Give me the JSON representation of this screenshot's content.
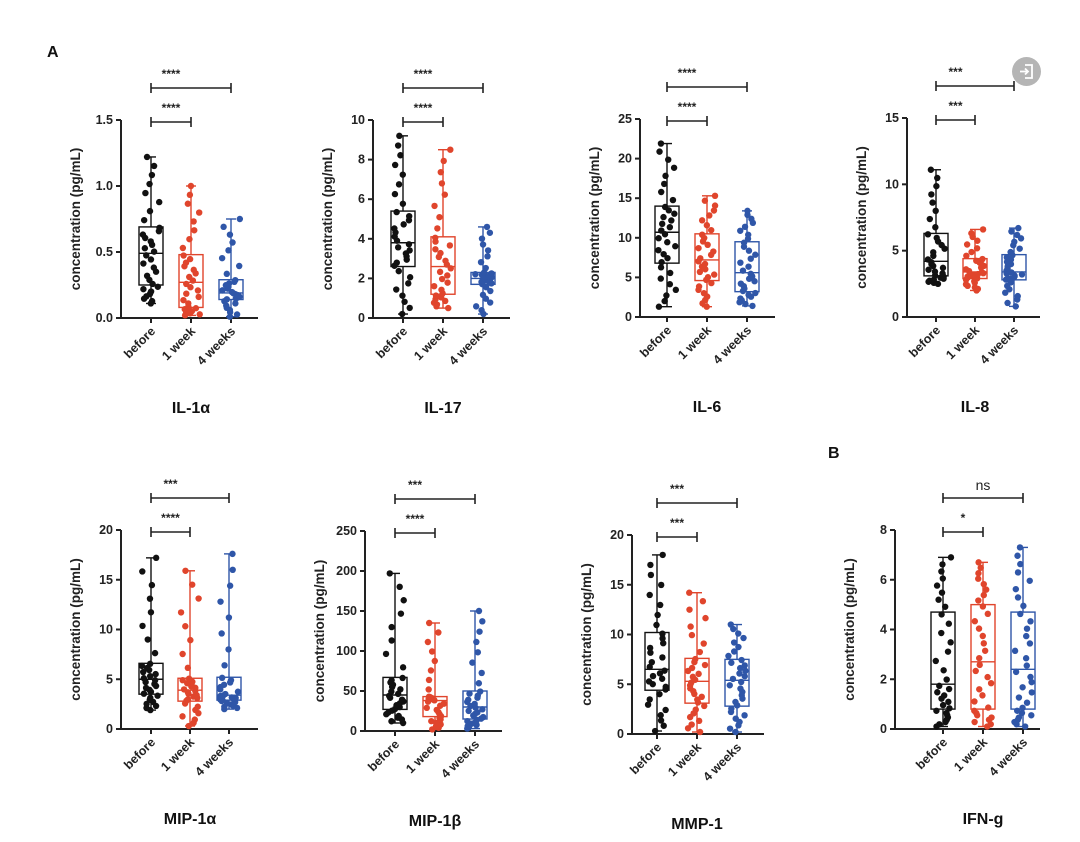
{
  "panel_letters": {
    "a": "A",
    "b": "B"
  },
  "icons": {
    "corner": "sign-in-icon"
  },
  "colors": {
    "before": "#111111",
    "1 week": "#e0452c",
    "4 weeks": "#2f56a8"
  },
  "chart_data": [
    {
      "type": "box",
      "title": "IL-1α",
      "ylabel": "concentration  (pg/mL)",
      "ylim": [
        0,
        1.5
      ],
      "yticks": [
        "0.0",
        "0.5",
        "1.0",
        "1.5"
      ],
      "ytick_values": [
        0,
        0.5,
        1.0,
        1.5
      ],
      "categories": [
        "before",
        "1 week",
        "4 weeks"
      ],
      "boxes": [
        {
          "min": 0.11,
          "q1": 0.25,
          "median": 0.49,
          "q3": 0.69,
          "max": 1.22
        },
        {
          "min": 0.02,
          "q1": 0.08,
          "median": 0.27,
          "q3": 0.48,
          "max": 1.0
        },
        {
          "min": 0.01,
          "q1": 0.14,
          "median": 0.19,
          "q3": 0.29,
          "max": 0.75
        }
      ],
      "significance": [
        {
          "groups": [
            "before",
            "1 week"
          ],
          "label": "****"
        },
        {
          "groups": [
            "before",
            "4 weeks"
          ],
          "label": "****"
        }
      ]
    },
    {
      "type": "box",
      "title": "IL-17",
      "ylabel": "concentration  (pg/mL)",
      "ylim": [
        0,
        10
      ],
      "yticks": [
        "0",
        "2",
        "4",
        "6",
        "8",
        "10"
      ],
      "ytick_values": [
        0,
        2,
        4,
        6,
        8,
        10
      ],
      "categories": [
        "before",
        "1 week",
        "4 weeks"
      ],
      "boxes": [
        {
          "min": 0.2,
          "q1": 2.6,
          "median": 3.8,
          "q3": 5.4,
          "max": 9.2
        },
        {
          "min": 0.5,
          "q1": 1.2,
          "median": 2.6,
          "q3": 4.1,
          "max": 8.5
        },
        {
          "min": 0.2,
          "q1": 1.7,
          "median": 2.0,
          "q3": 2.3,
          "max": 4.6
        }
      ],
      "significance": [
        {
          "groups": [
            "before",
            "1 week"
          ],
          "label": "****"
        },
        {
          "groups": [
            "before",
            "4 weeks"
          ],
          "label": "****"
        }
      ]
    },
    {
      "type": "box",
      "title": "IL-6",
      "ylabel": "concentration  (pg/mL)",
      "ylim": [
        0,
        25
      ],
      "yticks": [
        "0",
        "5",
        "10",
        "15",
        "20",
        "25"
      ],
      "ytick_values": [
        0,
        5,
        10,
        15,
        20,
        25
      ],
      "categories": [
        "before",
        "1 week",
        "4 weeks"
      ],
      "boxes": [
        {
          "min": 1.3,
          "q1": 6.8,
          "median": 10.7,
          "q3": 14.0,
          "max": 21.9
        },
        {
          "min": 1.3,
          "q1": 4.6,
          "median": 7.2,
          "q3": 10.5,
          "max": 15.3
        },
        {
          "min": 1.4,
          "q1": 3.2,
          "median": 5.6,
          "q3": 9.5,
          "max": 13.4
        }
      ],
      "significance": [
        {
          "groups": [
            "before",
            "1 week"
          ],
          "label": "****"
        },
        {
          "groups": [
            "before",
            "4 weeks"
          ],
          "label": "****"
        }
      ]
    },
    {
      "type": "box",
      "title": "IL-8",
      "ylabel": "concentration  (pg/mL)",
      "ylim": [
        0,
        15
      ],
      "yticks": [
        "0",
        "5",
        "10",
        "15"
      ],
      "ytick_values": [
        0,
        5,
        10,
        15
      ],
      "categories": [
        "before",
        "1 week",
        "4 weeks"
      ],
      "boxes": [
        {
          "min": 2.5,
          "q1": 3.1,
          "median": 4.2,
          "q3": 6.3,
          "max": 11.1
        },
        {
          "min": 2.0,
          "q1": 2.9,
          "median": 3.4,
          "q3": 4.4,
          "max": 6.6
        },
        {
          "min": 0.8,
          "q1": 2.8,
          "median": 3.4,
          "q3": 4.7,
          "max": 6.7
        }
      ],
      "significance": [
        {
          "groups": [
            "before",
            "1 week"
          ],
          "label": "***"
        },
        {
          "groups": [
            "before",
            "4 weeks"
          ],
          "label": "***"
        }
      ]
    },
    {
      "type": "box",
      "title": "MIP-1α",
      "ylabel": "concentration  (pg/mL)",
      "ylim": [
        0,
        20
      ],
      "yticks": [
        "0",
        "5",
        "10",
        "15",
        "20"
      ],
      "ytick_values": [
        0,
        5,
        10,
        15,
        20
      ],
      "categories": [
        "before",
        "1 week",
        "4 weeks"
      ],
      "boxes": [
        {
          "min": 1.9,
          "q1": 3.5,
          "median": 5.0,
          "q3": 6.6,
          "max": 17.2
        },
        {
          "min": 0.3,
          "q1": 2.8,
          "median": 3.9,
          "q3": 5.1,
          "max": 15.9
        },
        {
          "min": 2.0,
          "q1": 2.9,
          "median": 3.4,
          "q3": 5.2,
          "max": 17.6
        }
      ],
      "significance": [
        {
          "groups": [
            "before",
            "1 week"
          ],
          "label": "****"
        },
        {
          "groups": [
            "before",
            "4 weeks"
          ],
          "label": "***"
        }
      ]
    },
    {
      "type": "box",
      "title": "MIP-1β",
      "ylabel": "concentration  (pg/mL)",
      "ylim": [
        0,
        250
      ],
      "yticks": [
        "0",
        "50",
        "100",
        "150",
        "200",
        "250"
      ],
      "ytick_values": [
        0,
        50,
        100,
        150,
        200,
        250
      ],
      "categories": [
        "before",
        "1 week",
        "4 weeks"
      ],
      "boxes": [
        {
          "min": 10,
          "q1": 27,
          "median": 45,
          "q3": 67,
          "max": 197
        },
        {
          "min": 2,
          "q1": 18,
          "median": 38,
          "q3": 43,
          "max": 135
        },
        {
          "min": 3,
          "q1": 15,
          "median": 30,
          "q3": 50,
          "max": 150
        }
      ],
      "significance": [
        {
          "groups": [
            "before",
            "1 week"
          ],
          "label": "****"
        },
        {
          "groups": [
            "before",
            "4 weeks"
          ],
          "label": "***"
        }
      ]
    },
    {
      "type": "box",
      "title": "MMP-1",
      "ylabel": "concentration  (pg/mL)",
      "ylim": [
        0,
        20
      ],
      "yticks": [
        "0",
        "5",
        "10",
        "15",
        "20"
      ],
      "ytick_values": [
        0,
        5,
        10,
        15,
        20
      ],
      "categories": [
        "before",
        "1 week",
        "4 weeks"
      ],
      "boxes": [
        {
          "min": 0.3,
          "q1": 4.4,
          "median": 6.5,
          "q3": 10.2,
          "max": 18.0
        },
        {
          "min": 0.2,
          "q1": 3.1,
          "median": 5.3,
          "q3": 7.6,
          "max": 14.2
        },
        {
          "min": 0.2,
          "q1": 2.8,
          "median": 5.4,
          "q3": 7.5,
          "max": 11.0
        }
      ],
      "significance": [
        {
          "groups": [
            "before",
            "1 week"
          ],
          "label": "***"
        },
        {
          "groups": [
            "before",
            "4 weeks"
          ],
          "label": "***"
        }
      ]
    },
    {
      "type": "box",
      "title": "IFN-g",
      "ylabel": "concentration  (pg/mL)",
      "ylim": [
        0,
        8
      ],
      "yticks": [
        "0",
        "2",
        "4",
        "6",
        "8"
      ],
      "ytick_values": [
        0,
        2,
        4,
        6,
        8
      ],
      "categories": [
        "before",
        "1 week",
        "4 weeks"
      ],
      "boxes": [
        {
          "min": 0.1,
          "q1": 0.8,
          "median": 1.8,
          "q3": 4.7,
          "max": 6.9
        },
        {
          "min": 0.1,
          "q1": 0.8,
          "median": 2.7,
          "q3": 5.0,
          "max": 6.7
        },
        {
          "min": 0.1,
          "q1": 0.8,
          "median": 2.4,
          "q3": 4.7,
          "max": 7.3
        }
      ],
      "significance": [
        {
          "groups": [
            "before",
            "1 week"
          ],
          "label": "*"
        },
        {
          "groups": [
            "before",
            "4 weeks"
          ],
          "label": "ns"
        }
      ]
    }
  ]
}
